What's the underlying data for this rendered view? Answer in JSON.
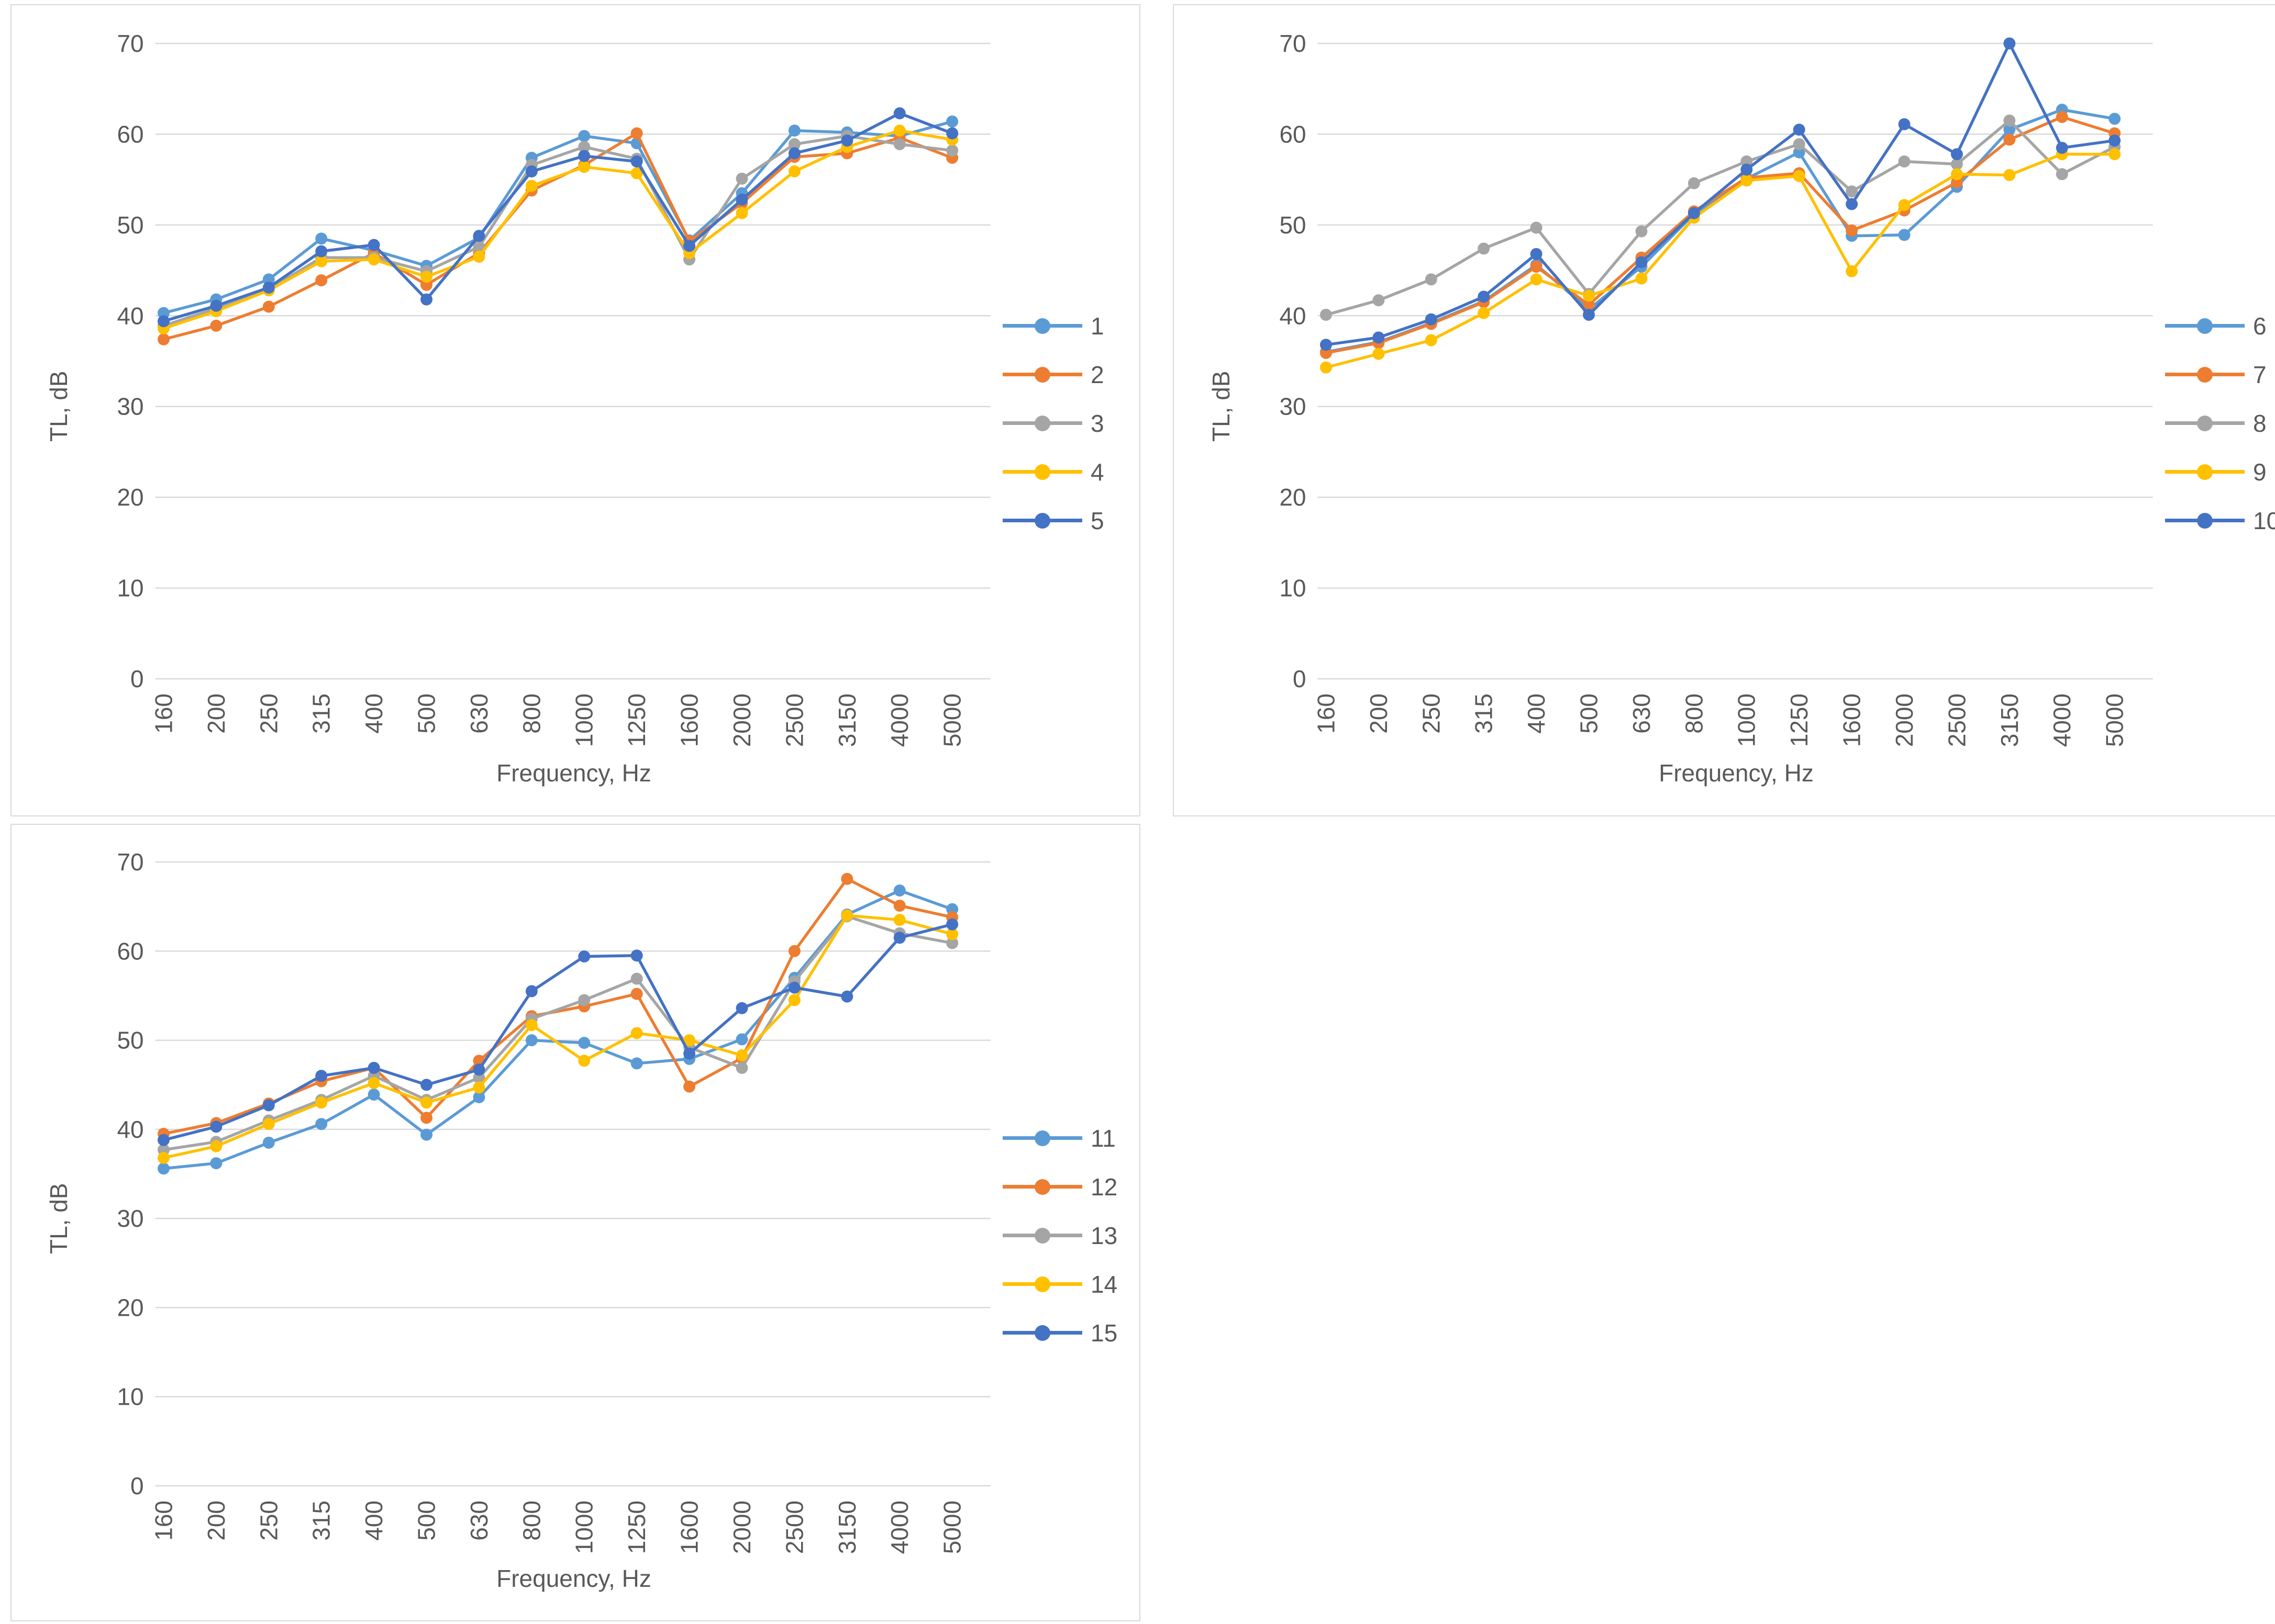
{
  "palette": {
    "s1": "#5B9BD5",
    "s2": "#ED7D31",
    "s3": "#A5A5A5",
    "s4": "#FFC000",
    "s5": "#4472C4"
  },
  "text_color": "#595959",
  "gridline_color": "#d9d9d9",
  "chart_data": [
    {
      "type": "line",
      "title": "",
      "xlabel": "Frequency, Hz",
      "ylabel": "TL, dB",
      "ylim": [
        0,
        70
      ],
      "yticks": [
        0,
        10,
        20,
        30,
        40,
        50,
        60,
        70
      ],
      "grid": true,
      "legend_position": "right",
      "categories": [
        "160",
        "200",
        "250",
        "315",
        "400",
        "500",
        "630",
        "800",
        "1000",
        "1250",
        "1600",
        "2000",
        "2500",
        "3150",
        "4000",
        "5000"
      ],
      "series": [
        {
          "name": "1",
          "color": "s1",
          "values": [
            40.3,
            41.8,
            44.0,
            48.5,
            47.2,
            45.5,
            48.6,
            57.4,
            59.8,
            59.0,
            48.3,
            53.5,
            60.4,
            60.2,
            59.8,
            61.4
          ]
        },
        {
          "name": "2",
          "color": "s2",
          "values": [
            37.4,
            38.9,
            41.0,
            43.9,
            46.9,
            43.4,
            46.9,
            53.8,
            56.6,
            60.1,
            48.2,
            52.4,
            57.5,
            57.9,
            59.6,
            57.4
          ]
        },
        {
          "name": "3",
          "color": "s3",
          "values": [
            38.9,
            40.8,
            42.9,
            46.4,
            46.4,
            44.9,
            47.6,
            56.6,
            58.6,
            57.3,
            46.2,
            55.1,
            58.9,
            59.8,
            58.9,
            58.2
          ]
        },
        {
          "name": "4",
          "color": "s4",
          "values": [
            38.6,
            40.5,
            42.8,
            46.0,
            46.2,
            44.3,
            46.5,
            54.3,
            56.4,
            55.7,
            46.9,
            51.3,
            55.9,
            58.6,
            60.4,
            59.4
          ]
        },
        {
          "name": "5",
          "color": "s5",
          "values": [
            39.4,
            41.1,
            43.1,
            47.1,
            47.8,
            41.8,
            48.8,
            55.9,
            57.6,
            57.0,
            47.7,
            52.8,
            57.9,
            59.3,
            62.3,
            60.1
          ]
        }
      ]
    },
    {
      "type": "line",
      "title": "",
      "xlabel": "Frequency, Hz",
      "ylabel": "TL, dB",
      "ylim": [
        0,
        70
      ],
      "yticks": [
        0,
        10,
        20,
        30,
        40,
        50,
        60,
        70
      ],
      "grid": true,
      "legend_position": "right",
      "categories": [
        "160",
        "200",
        "250",
        "315",
        "400",
        "500",
        "630",
        "800",
        "1000",
        "1250",
        "1600",
        "2000",
        "2500",
        "3150",
        "4000",
        "5000"
      ],
      "series": [
        {
          "name": "6",
          "color": "s1",
          "values": [
            36.0,
            37.1,
            39.2,
            41.6,
            45.6,
            40.7,
            45.4,
            51.2,
            55.1,
            58.0,
            48.8,
            48.9,
            54.2,
            60.5,
            62.7,
            61.7
          ]
        },
        {
          "name": "7",
          "color": "s2",
          "values": [
            35.9,
            37.0,
            39.1,
            41.5,
            45.4,
            41.2,
            46.4,
            51.5,
            55.2,
            55.7,
            49.4,
            51.6,
            54.7,
            59.4,
            61.9,
            60.1
          ]
        },
        {
          "name": "8",
          "color": "s3",
          "values": [
            40.1,
            41.7,
            44.0,
            47.4,
            49.7,
            42.4,
            49.3,
            54.6,
            57.0,
            58.9,
            53.7,
            57.0,
            56.7,
            61.5,
            55.6,
            58.6
          ]
        },
        {
          "name": "9",
          "color": "s4",
          "values": [
            34.3,
            35.8,
            37.3,
            40.3,
            44.0,
            42.2,
            44.1,
            50.8,
            54.9,
            55.4,
            44.9,
            52.2,
            55.6,
            55.5,
            57.8,
            57.8
          ]
        },
        {
          "name": "10",
          "color": "s5",
          "values": [
            36.8,
            37.6,
            39.6,
            42.1,
            46.8,
            40.1,
            45.9,
            51.3,
            56.1,
            60.5,
            52.3,
            61.1,
            57.8,
            70.0,
            58.5,
            59.3
          ]
        }
      ]
    },
    {
      "type": "line",
      "title": "",
      "xlabel": "Frequency, Hz",
      "ylabel": "TL, dB",
      "ylim": [
        0,
        70
      ],
      "yticks": [
        0,
        10,
        20,
        30,
        40,
        50,
        60,
        70
      ],
      "grid": true,
      "legend_position": "right",
      "categories": [
        "160",
        "200",
        "250",
        "315",
        "400",
        "500",
        "630",
        "800",
        "1000",
        "1250",
        "1600",
        "2000",
        "2500",
        "3150",
        "4000",
        "5000"
      ],
      "series": [
        {
          "name": "11",
          "color": "s1",
          "values": [
            35.6,
            36.2,
            38.5,
            40.6,
            43.9,
            39.4,
            43.6,
            50.0,
            49.7,
            47.4,
            47.9,
            50.1,
            57.0,
            64.1,
            66.8,
            64.7
          ]
        },
        {
          "name": "12",
          "color": "s2",
          "values": [
            39.5,
            40.7,
            42.9,
            45.4,
            46.9,
            41.3,
            47.7,
            52.7,
            53.8,
            55.2,
            44.8,
            48.0,
            60.0,
            68.1,
            65.1,
            63.8
          ]
        },
        {
          "name": "13",
          "color": "s3",
          "values": [
            37.7,
            38.6,
            41.0,
            43.3,
            46.0,
            43.3,
            45.8,
            52.4,
            54.5,
            56.9,
            49.2,
            46.9,
            56.6,
            63.9,
            62.0,
            60.9
          ]
        },
        {
          "name": "14",
          "color": "s4",
          "values": [
            36.8,
            38.1,
            40.6,
            43.0,
            45.2,
            43.0,
            44.7,
            51.7,
            47.7,
            50.8,
            50.0,
            48.3,
            54.5,
            64.0,
            63.5,
            61.9
          ]
        },
        {
          "name": "15",
          "color": "s5",
          "values": [
            38.8,
            40.3,
            42.7,
            46.0,
            46.9,
            45.0,
            46.7,
            55.5,
            59.4,
            59.5,
            48.5,
            53.6,
            55.9,
            54.9,
            61.5,
            63.0
          ]
        }
      ]
    }
  ]
}
